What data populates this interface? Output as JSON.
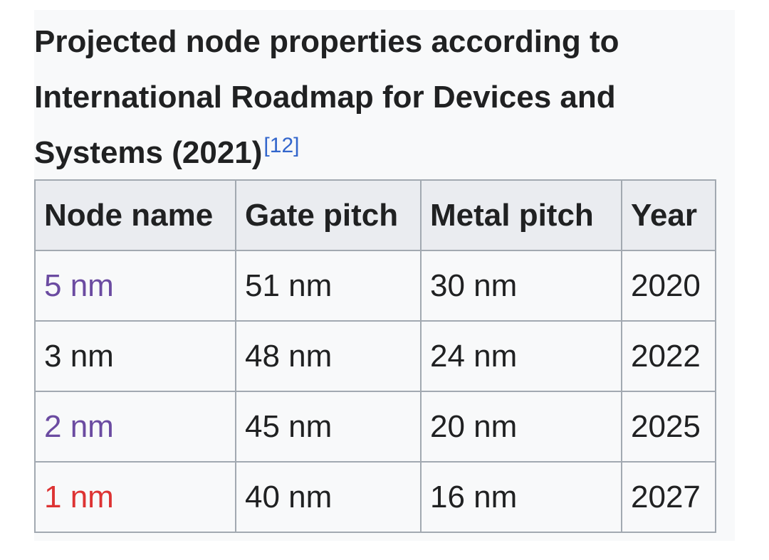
{
  "caption": {
    "title": "Projected node properties according to International Roadmap for Devices and Systems (2021)",
    "reference": "[12]"
  },
  "table": {
    "headers": [
      "Node name",
      "Gate pitch",
      "Metal pitch",
      "Year"
    ],
    "rows": [
      {
        "node": "5 nm",
        "gate": "51 nm",
        "metal": "30 nm",
        "year": "2020"
      },
      {
        "node": "3 nm",
        "gate": "48 nm",
        "metal": "24 nm",
        "year": "2022"
      },
      {
        "node": "2 nm",
        "gate": "45 nm",
        "metal": "20 nm",
        "year": "2025"
      },
      {
        "node": "1 nm",
        "gate": "40 nm",
        "metal": "16 nm",
        "year": "2027"
      }
    ]
  },
  "colors": {
    "visited_link": "#6b4ba1",
    "missing_link": "#dd3333",
    "reference_link": "#3366cc",
    "header_bg": "#eaecf0",
    "border": "#a2a9b1"
  }
}
